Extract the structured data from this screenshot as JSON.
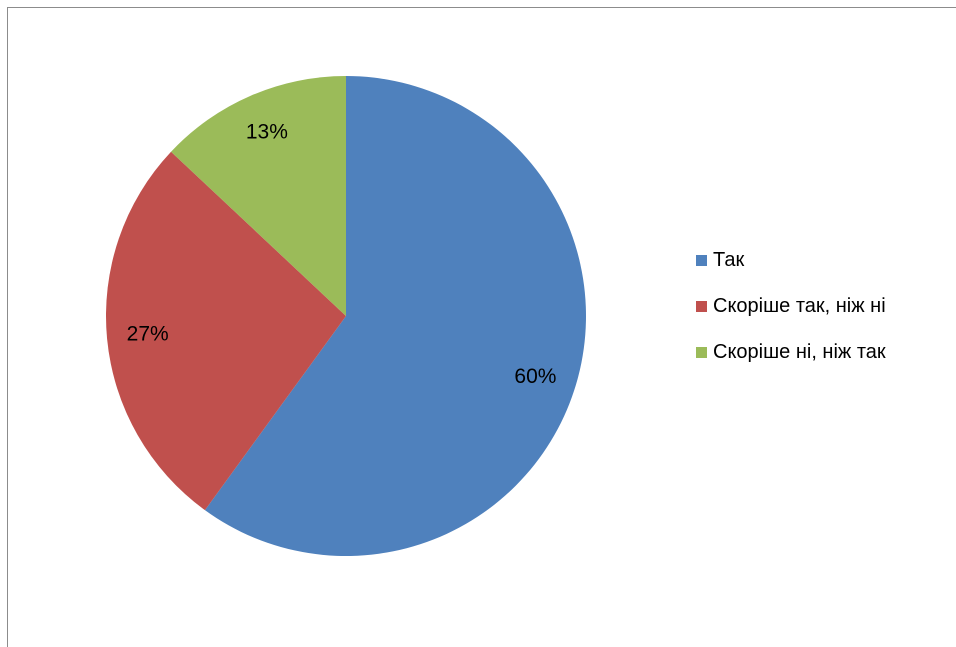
{
  "chart_data": {
    "type": "pie",
    "title": "",
    "legend_position": "right",
    "slices": [
      {
        "label": "Так",
        "value": 60,
        "display": "60%",
        "color": "#4f81bd"
      },
      {
        "label": "Скоріше так, ніж ні",
        "value": 27,
        "display": "27%",
        "color": "#c0504d"
      },
      {
        "label": "Скоріше ні, ніж так",
        "value": 13,
        "display": "13%",
        "color": "#9bbb59"
      }
    ]
  }
}
